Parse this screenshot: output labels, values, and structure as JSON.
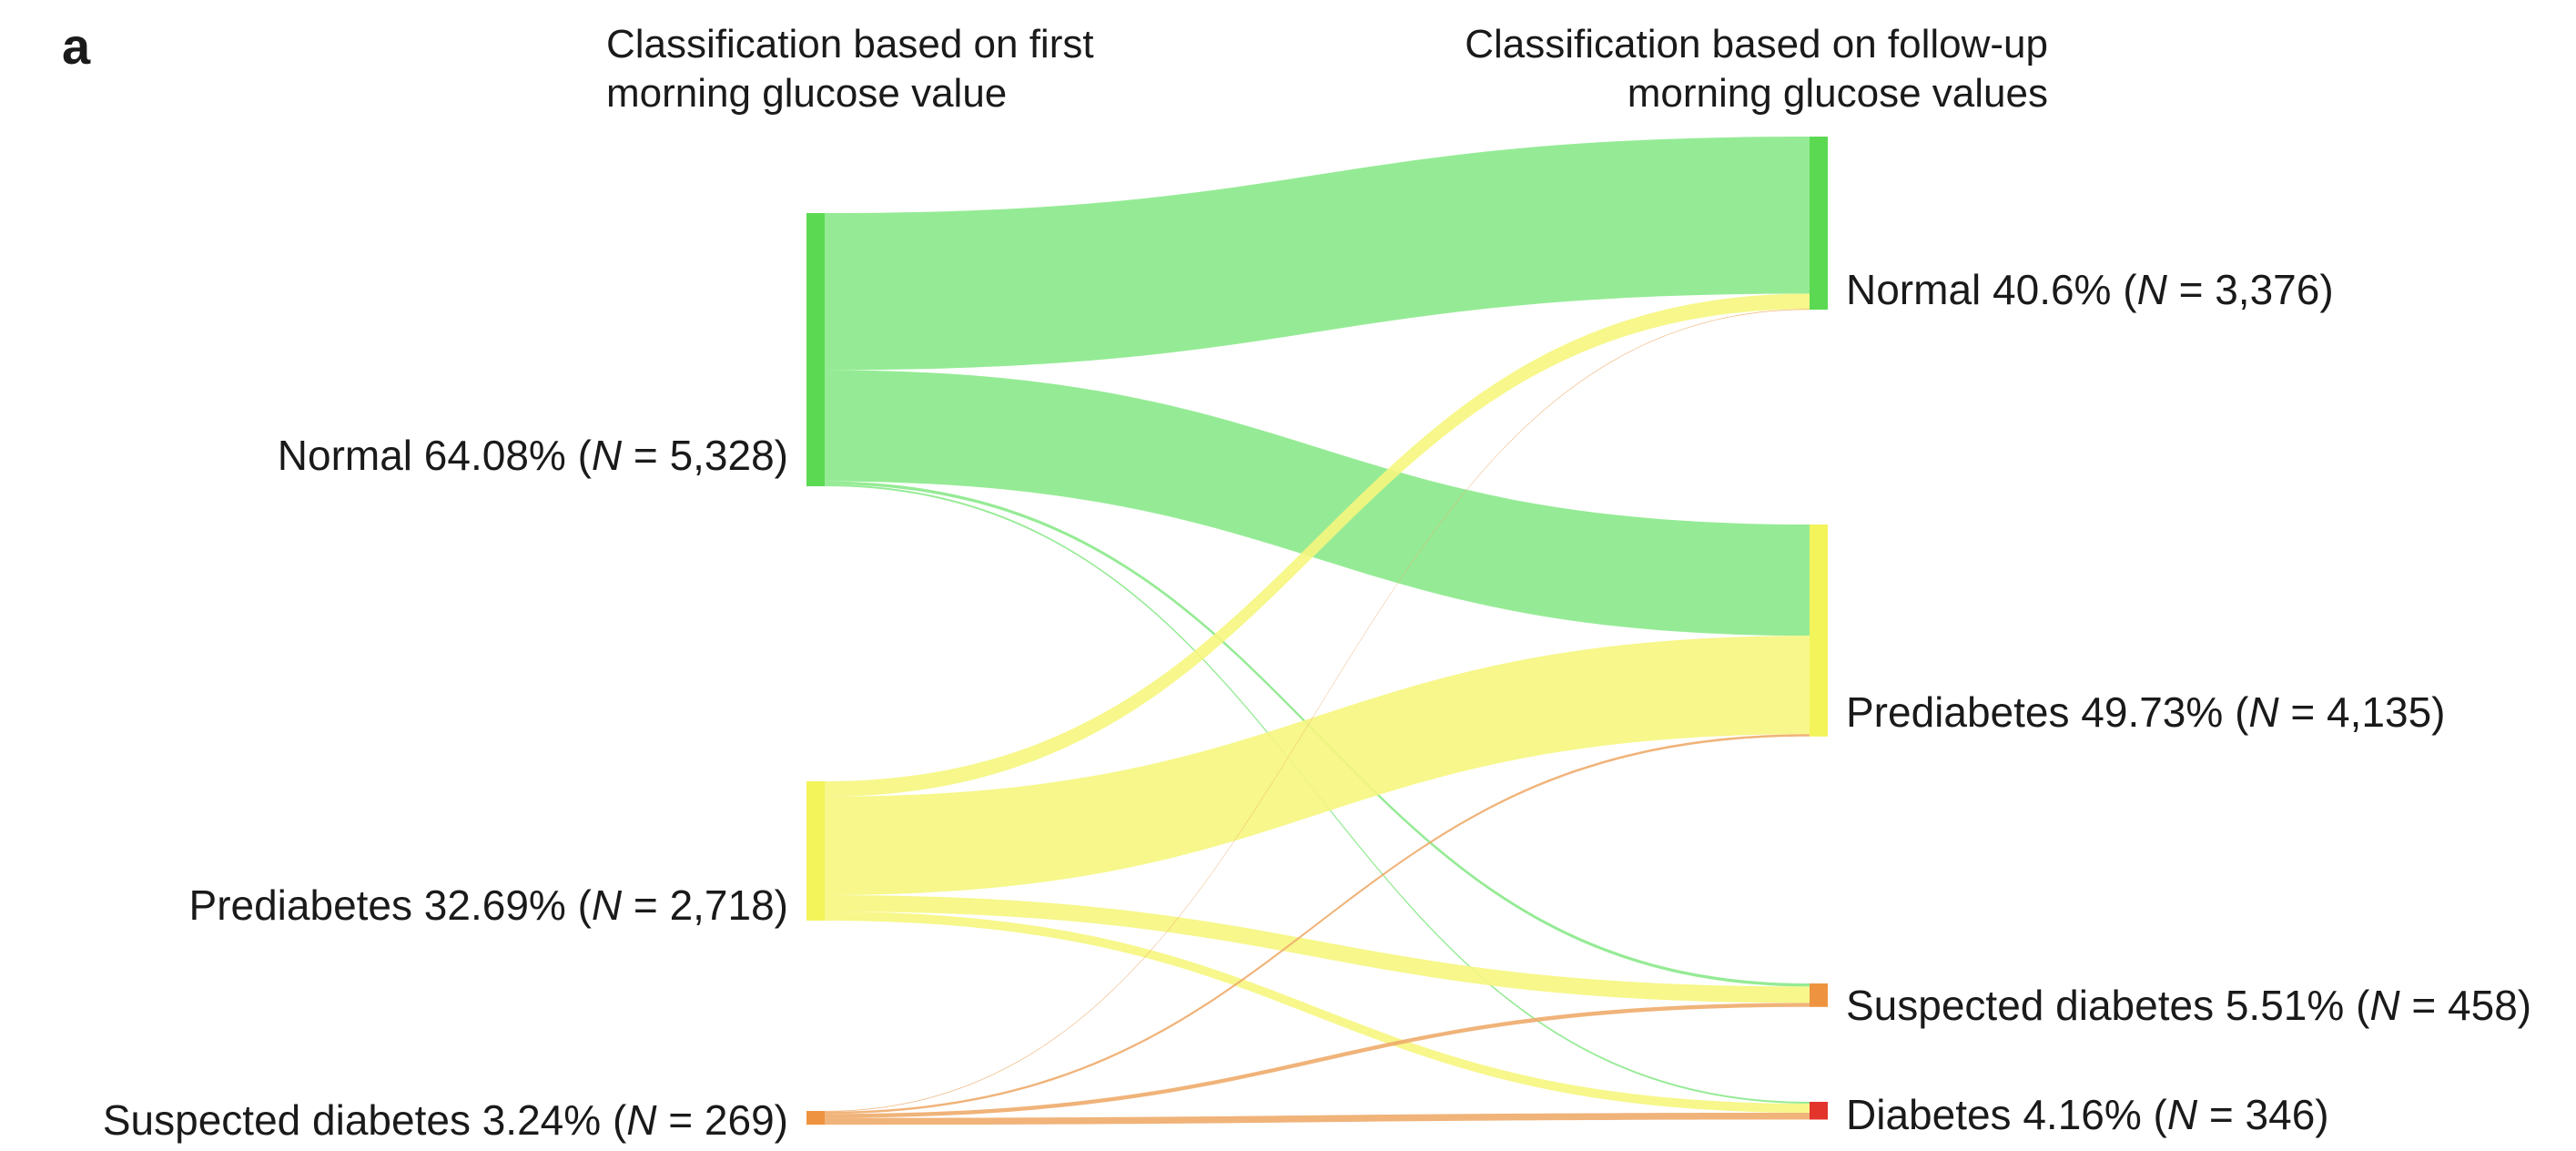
{
  "panel_label": "a",
  "titles": {
    "left": [
      "Classification based on first",
      "morning glucose value"
    ],
    "right": [
      "Classification based on follow-up",
      "morning glucose values"
    ]
  },
  "colors": {
    "normal": "#5bd953",
    "normal_flow": "#8ae98a",
    "prediabetes": "#f3f35a",
    "prediabetes_flow": "#f6f67e",
    "suspected": "#ee9440",
    "suspected_flow": "#eeab6a",
    "diabetes": "#e3342c"
  },
  "chart_data": {
    "type": "sankey",
    "left_nodes": [
      {
        "id": "L_normal",
        "category": "normal",
        "name": "Normal",
        "pct": "64.08%",
        "n": "5,328",
        "value": 5328
      },
      {
        "id": "L_pre",
        "category": "prediabetes",
        "name": "Prediabetes",
        "pct": "32.69%",
        "n": "2,718",
        "value": 2718
      },
      {
        "id": "L_sus",
        "category": "suspected",
        "name": "Suspected diabetes",
        "pct": "3.24%",
        "n": "269",
        "value": 269
      }
    ],
    "right_nodes": [
      {
        "id": "R_normal",
        "category": "normal",
        "name": "Normal",
        "pct": "40.6%",
        "n": "3,376",
        "value": 3376
      },
      {
        "id": "R_pre",
        "category": "prediabetes",
        "name": "Prediabetes",
        "pct": "49.73%",
        "n": "4,135",
        "value": 4135
      },
      {
        "id": "R_sus",
        "category": "suspected",
        "name": "Suspected diabetes",
        "pct": "5.51%",
        "n": "458",
        "value": 458
      },
      {
        "id": "R_dia",
        "category": "diabetes",
        "name": "Diabetes",
        "pct": "4.16%",
        "n": "346",
        "value": 346
      }
    ],
    "flows": [
      {
        "from": "L_normal",
        "to": "R_normal",
        "value": 3063
      },
      {
        "from": "L_normal",
        "to": "R_pre",
        "value": 2170
      },
      {
        "from": "L_normal",
        "to": "R_sus",
        "value": 60
      },
      {
        "from": "L_normal",
        "to": "R_dia",
        "value": 35
      },
      {
        "from": "L_pre",
        "to": "R_normal",
        "value": 300
      },
      {
        "from": "L_pre",
        "to": "R_pre",
        "value": 1920
      },
      {
        "from": "L_pre",
        "to": "R_sus",
        "value": 320
      },
      {
        "from": "L_pre",
        "to": "R_dia",
        "value": 178
      },
      {
        "from": "L_sus",
        "to": "R_normal",
        "value": 13
      },
      {
        "from": "L_sus",
        "to": "R_pre",
        "value": 45
      },
      {
        "from": "L_sus",
        "to": "R_sus",
        "value": 78
      },
      {
        "from": "L_sus",
        "to": "R_dia",
        "value": 133
      }
    ]
  }
}
